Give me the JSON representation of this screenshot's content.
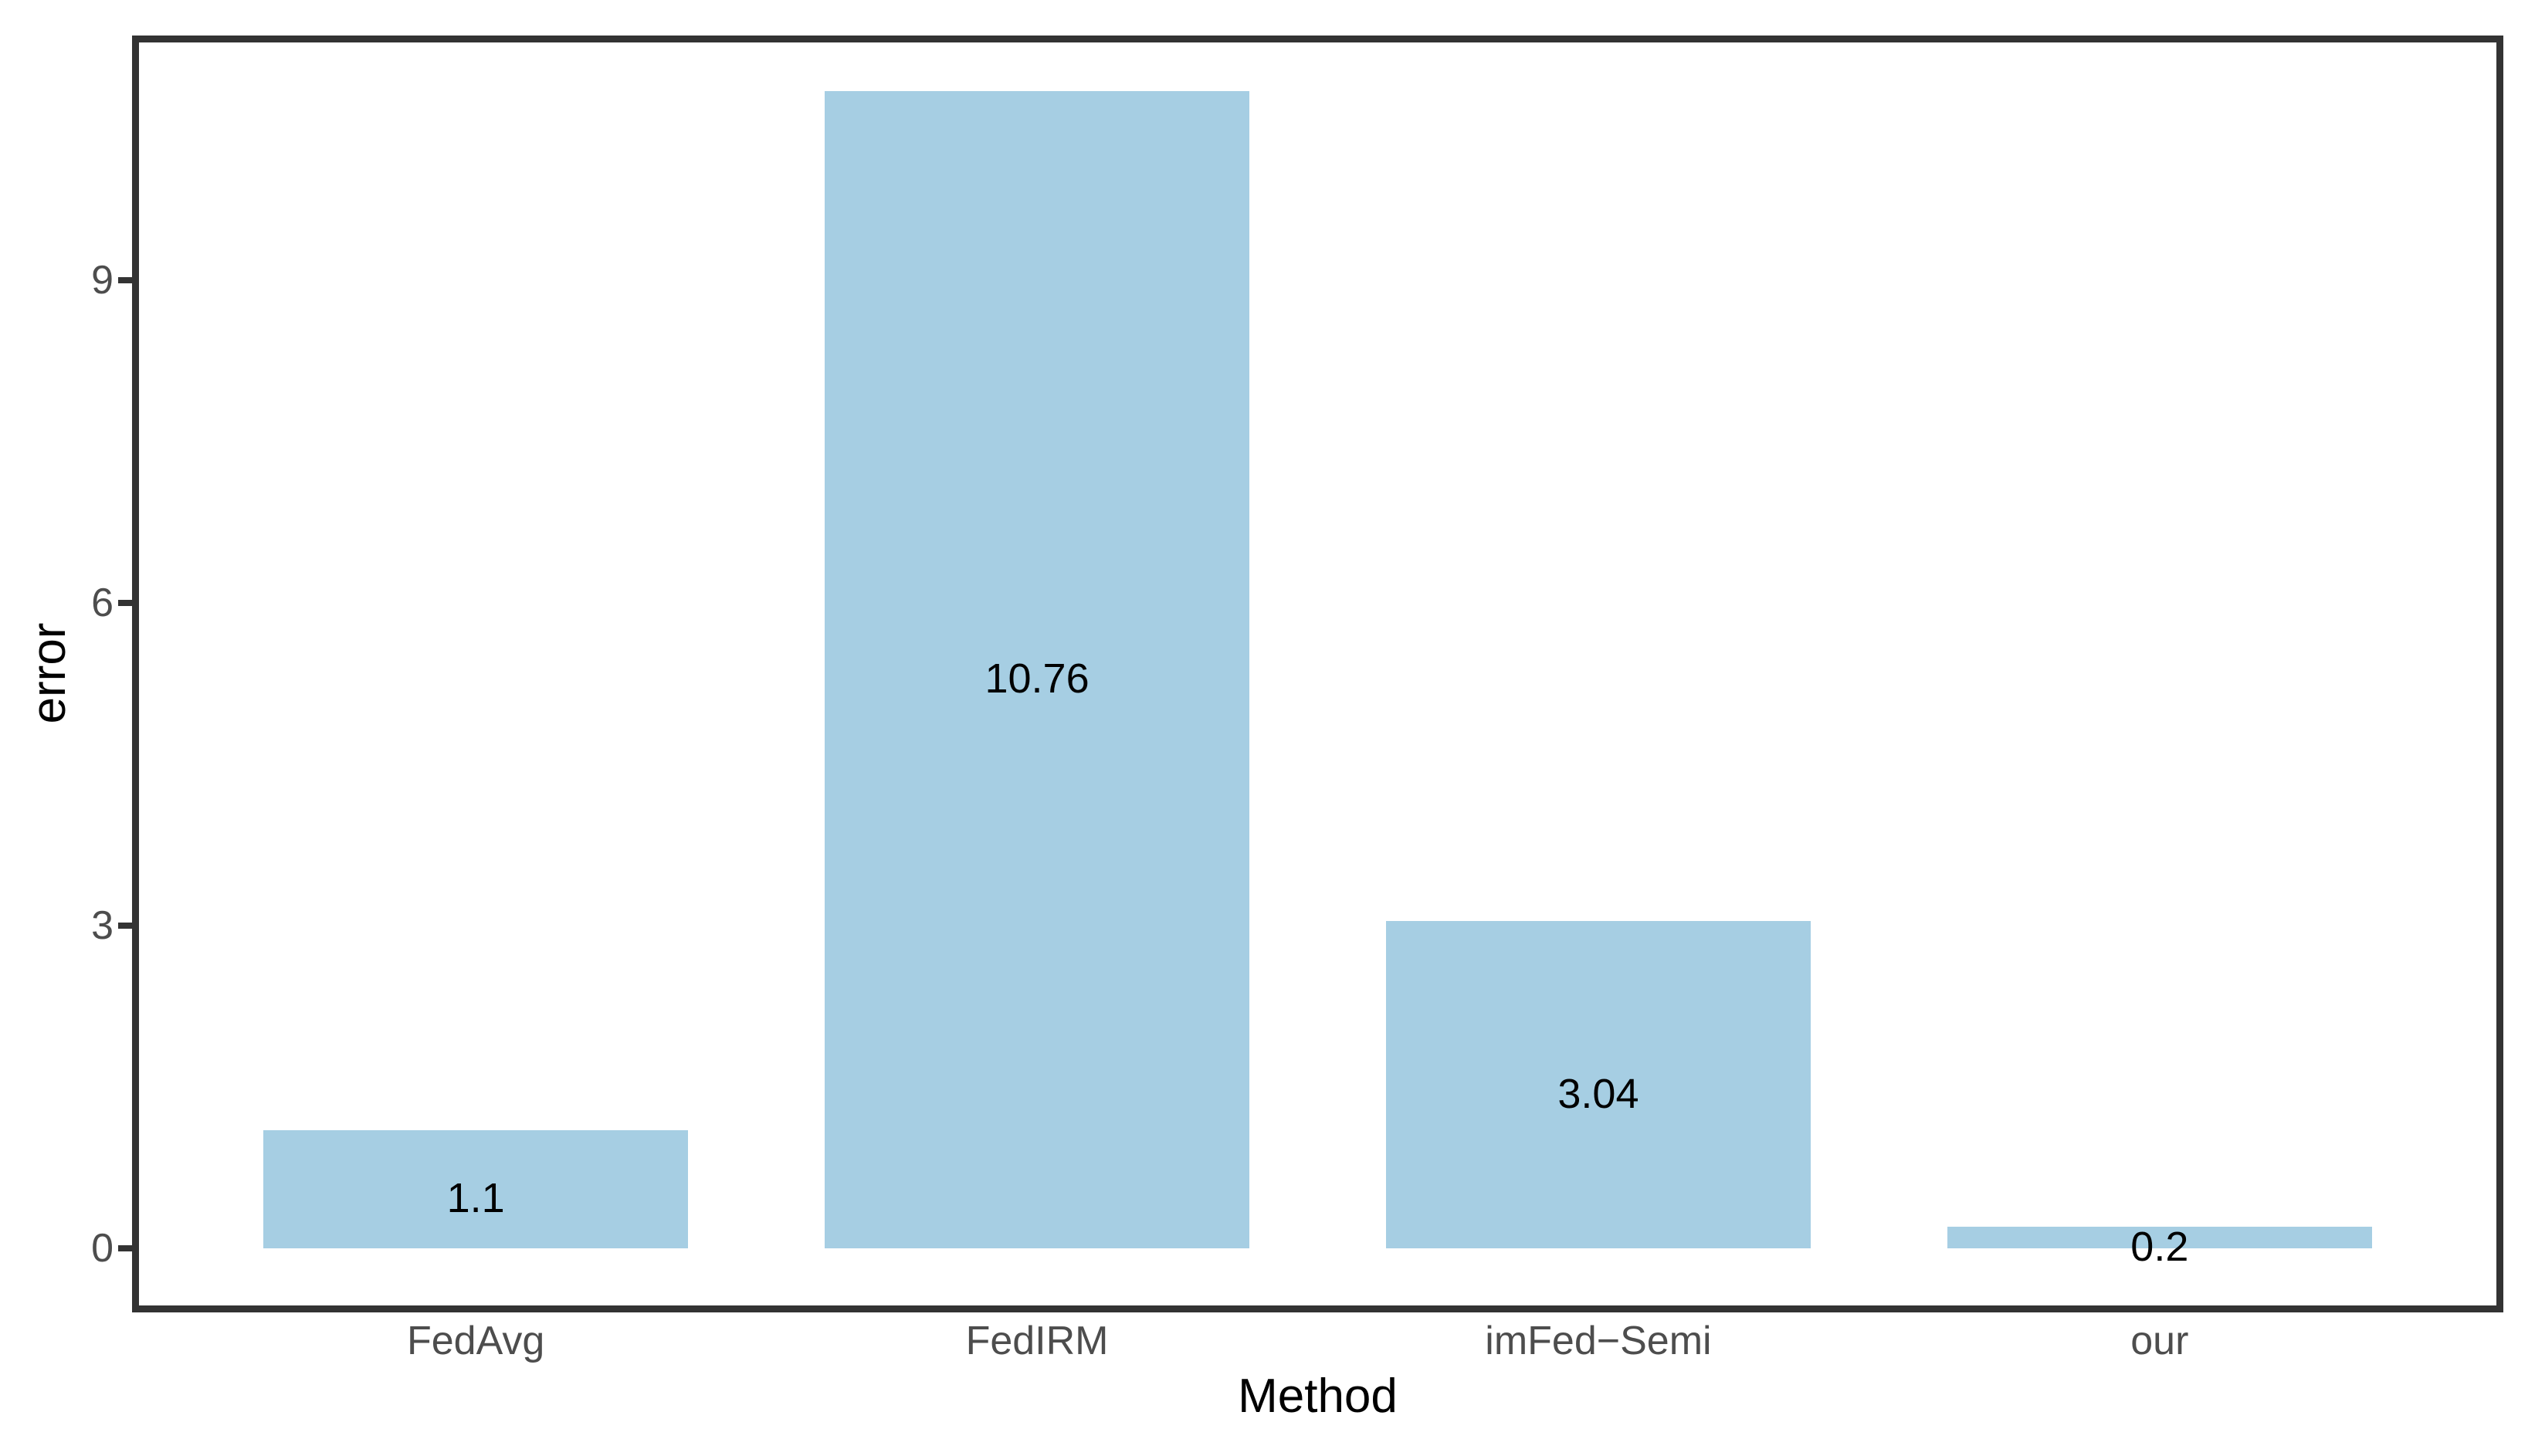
{
  "chart_data": {
    "type": "bar",
    "title": "",
    "xlabel": "Method",
    "ylabel": "error",
    "categories": [
      "FedAvg",
      "FedIRM",
      "imFed−Semi",
      "our"
    ],
    "values": [
      1.1,
      10.76,
      3.04,
      0.2
    ],
    "bar_labels": [
      "1.1",
      "10.76",
      "3.04",
      "0.2"
    ],
    "yticks": [
      0,
      3,
      6,
      9
    ],
    "ylim": [
      -0.57,
      11.33
    ],
    "grid": false,
    "legend": false,
    "colors": {
      "bar_fill": "#A6CEE3",
      "axis_line": "#333333",
      "axis_text": "#4D4D4D",
      "axis_title": "#000000",
      "bar_label_text": "#000000",
      "background": "#FFFFFF"
    }
  }
}
